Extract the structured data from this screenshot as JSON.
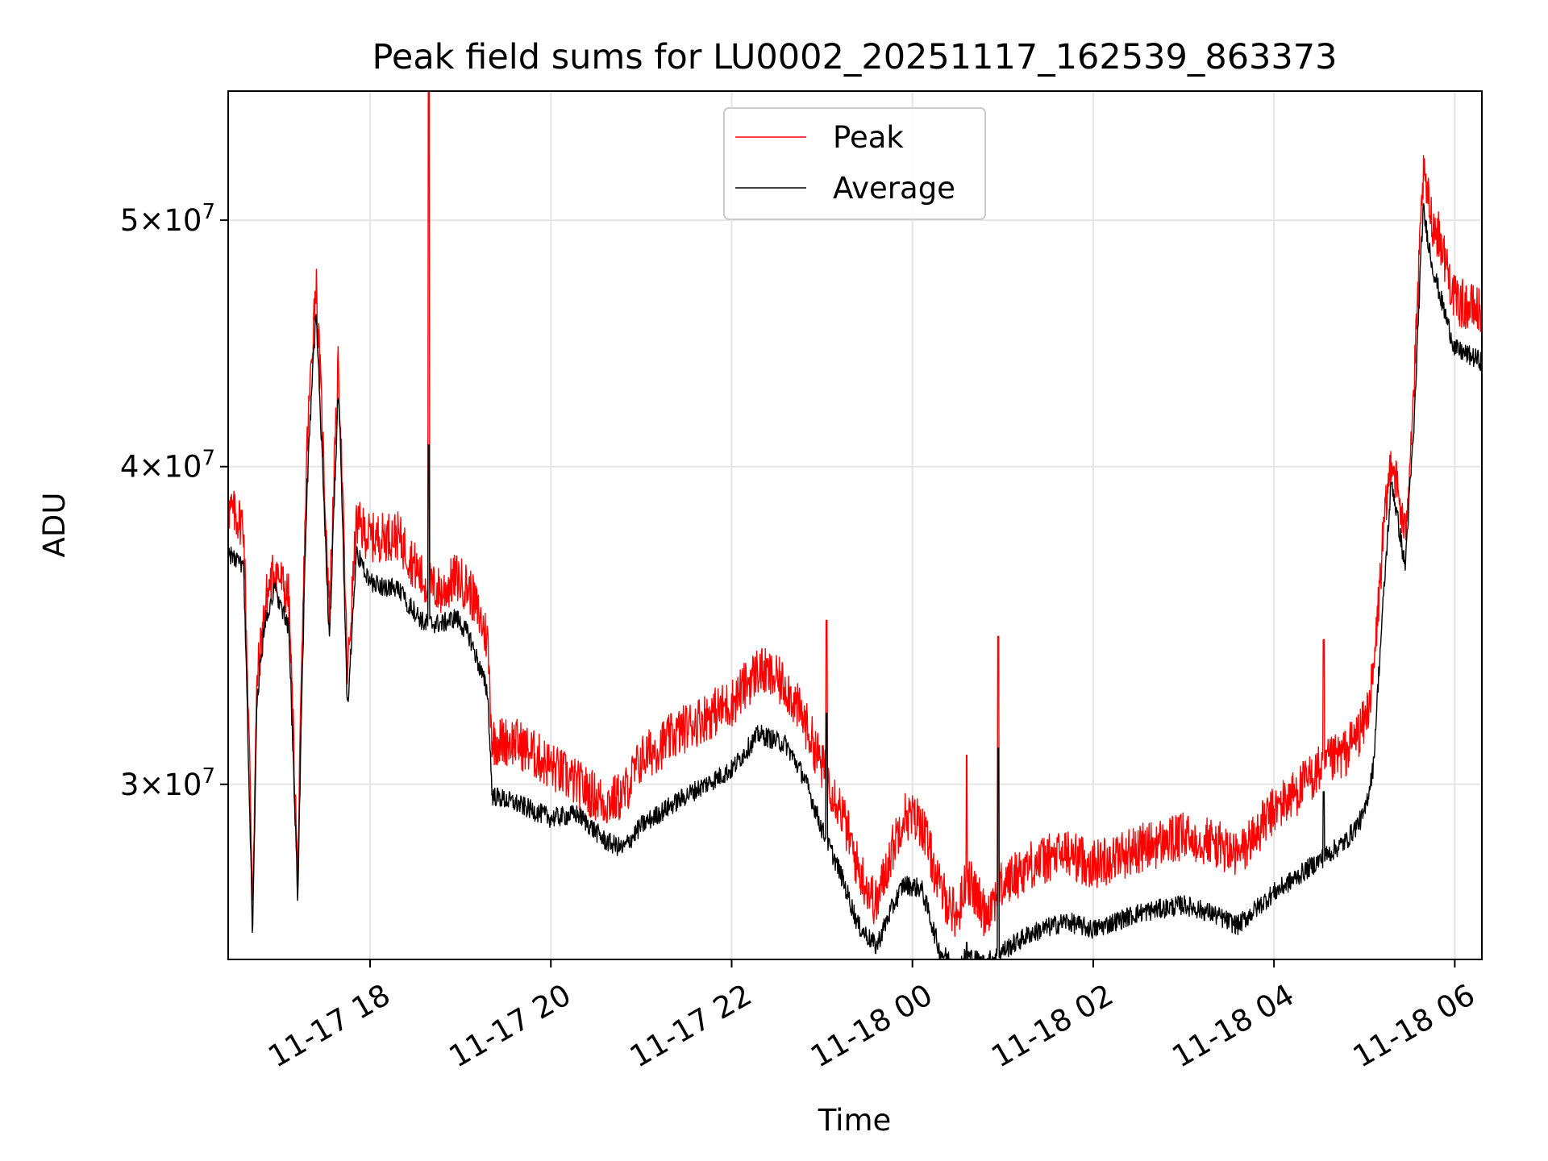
{
  "chart_data": {
    "type": "line",
    "title": "Peak field sums for LU0002_20251117_162539_863373",
    "xlabel": "Time",
    "ylabel": "ADU",
    "yscale": "log",
    "grid": true,
    "legend_position": "top-center",
    "xlim_hours": [
      16.43,
      30.3
    ],
    "ylim": [
      25600000,
      56200000
    ],
    "x_ticks": [
      {
        "hour": 18,
        "label": "11-17 18"
      },
      {
        "hour": 20,
        "label": "11-17 20"
      },
      {
        "hour": 22,
        "label": "11-17 22"
      },
      {
        "hour": 24,
        "label": "11-18 00"
      },
      {
        "hour": 26,
        "label": "11-18 02"
      },
      {
        "hour": 28,
        "label": "11-18 04"
      },
      {
        "hour": 30,
        "label": "11-18 06"
      }
    ],
    "y_ticks": [
      {
        "value": 30000000,
        "base": "3",
        "exp": "7"
      },
      {
        "value": 40000000,
        "base": "4",
        "exp": "7"
      },
      {
        "value": 50000000,
        "base": "5",
        "exp": "7"
      }
    ],
    "x_hours": [
      16.43,
      16.6,
      16.7,
      16.75,
      16.85,
      16.95,
      17.1,
      17.2,
      17.3,
      17.4,
      17.5,
      17.55,
      17.65,
      17.75,
      17.85,
      18.0,
      18.3,
      18.6,
      18.8,
      18.95,
      19.1,
      19.3,
      19.35,
      19.6,
      20.0,
      20.3,
      20.6,
      20.8,
      21.0,
      21.5,
      22.0,
      22.3,
      22.6,
      22.8,
      23.0,
      23.2,
      23.4,
      23.6,
      23.75,
      23.9,
      24.1,
      24.3,
      24.5,
      24.6,
      24.8,
      25.0,
      25.3,
      25.7,
      26.0,
      26.5,
      27.0,
      27.3,
      27.6,
      28.0,
      28.2,
      28.5,
      28.8,
      29.0,
      29.1,
      29.2,
      29.3,
      29.45,
      29.55,
      29.65,
      29.75,
      29.85,
      30.0,
      30.3
    ],
    "series": [
      {
        "name": "Peak",
        "color": "#ff0000",
        "values": [
          38500000,
          38000000,
          27000000,
          33000000,
          35500000,
          36500000,
          35500000,
          27500000,
          40500000,
          47500000,
          39000000,
          35000000,
          44000000,
          33000000,
          38000000,
          37500000,
          37600000,
          36000000,
          35700000,
          36200000,
          35800000,
          34200000,
          31200000,
          31200000,
          30500000,
          30000000,
          29500000,
          29700000,
          30700000,
          31600000,
          32300000,
          33300000,
          32800000,
          31800000,
          30500000,
          29400000,
          27800000,
          26900000,
          28100000,
          29200000,
          29000000,
          27300000,
          26600000,
          27600000,
          26700000,
          27400000,
          27900000,
          28200000,
          27900000,
          28300000,
          28600000,
          28500000,
          28100000,
          29300000,
          29700000,
          30400000,
          30900000,
          31700000,
          33000000,
          37200000,
          40500000,
          37500000,
          43000000,
          52000000,
          50000000,
          49000000,
          46500000,
          46000000
        ]
      },
      {
        "name": "Average",
        "color": "#000000",
        "values": [
          37000000,
          36500000,
          26000000,
          32500000,
          35000000,
          35800000,
          34500000,
          27000000,
          39000000,
          46000000,
          38000000,
          34000000,
          43000000,
          32000000,
          37000000,
          36000000,
          35800000,
          34700000,
          34700000,
          34900000,
          34300000,
          32600000,
          29700000,
          29500000,
          29100000,
          29200000,
          28500000,
          28300000,
          28900000,
          29700000,
          30400000,
          31400000,
          31100000,
          30200000,
          28800000,
          27700000,
          26400000,
          25900000,
          26700000,
          27400000,
          27300000,
          25800000,
          25400000,
          25700000,
          25500000,
          25800000,
          26200000,
          26500000,
          26300000,
          26700000,
          26900000,
          26700000,
          26400000,
          27200000,
          27500000,
          28000000,
          28500000,
          29200000,
          30500000,
          35000000,
          39500000,
          36500000,
          41500000,
          50500000,
          48000000,
          46500000,
          44500000,
          44000000
        ]
      }
    ],
    "annotations": [
      {
        "hour": 18.65,
        "peak": 56500000,
        "average": 40800000
      },
      {
        "hour": 23.05,
        "peak": 34800000,
        "average": 32000000
      },
      {
        "hour": 24.6,
        "peak": 30800000,
        "average": 26000000
      },
      {
        "hour": 24.95,
        "peak": 34300000,
        "average": 31000000
      },
      {
        "hour": 28.55,
        "peak": 34200000,
        "average": 29800000
      }
    ]
  }
}
